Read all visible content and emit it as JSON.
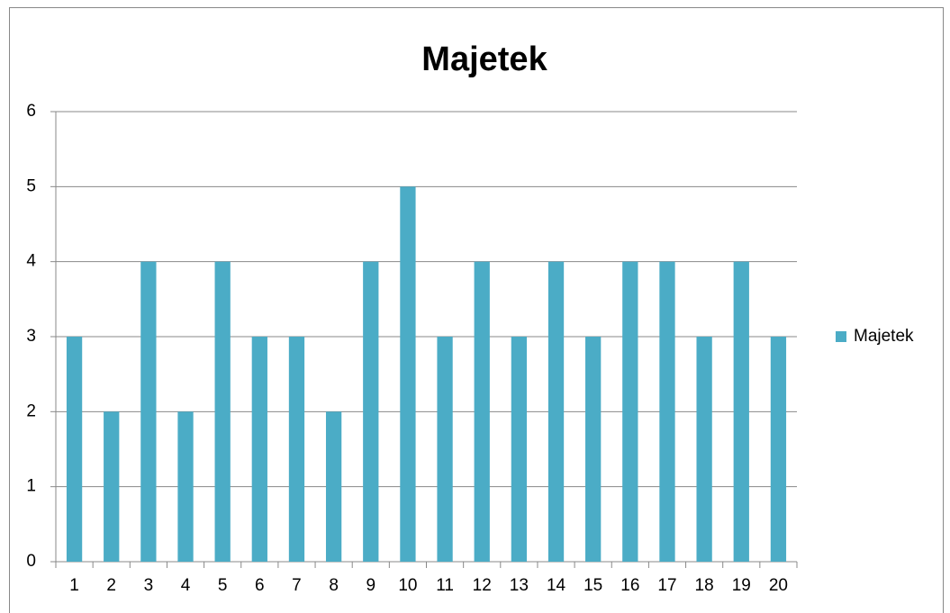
{
  "chart_data": {
    "type": "bar",
    "title": "Majetek",
    "categories": [
      "1",
      "2",
      "3",
      "4",
      "5",
      "6",
      "7",
      "8",
      "9",
      "10",
      "11",
      "12",
      "13",
      "14",
      "15",
      "16",
      "17",
      "18",
      "19",
      "20"
    ],
    "series": [
      {
        "name": "Majetek",
        "color": "#4bacc6",
        "values": [
          3,
          2,
          4,
          2,
          4,
          3,
          3,
          2,
          4,
          5,
          3,
          4,
          3,
          4,
          3,
          4,
          4,
          3,
          4,
          3
        ]
      }
    ],
    "ylim": [
      0,
      6
    ],
    "yticks": [
      0,
      1,
      2,
      3,
      4,
      5,
      6
    ],
    "grid": true,
    "legend": "right"
  }
}
